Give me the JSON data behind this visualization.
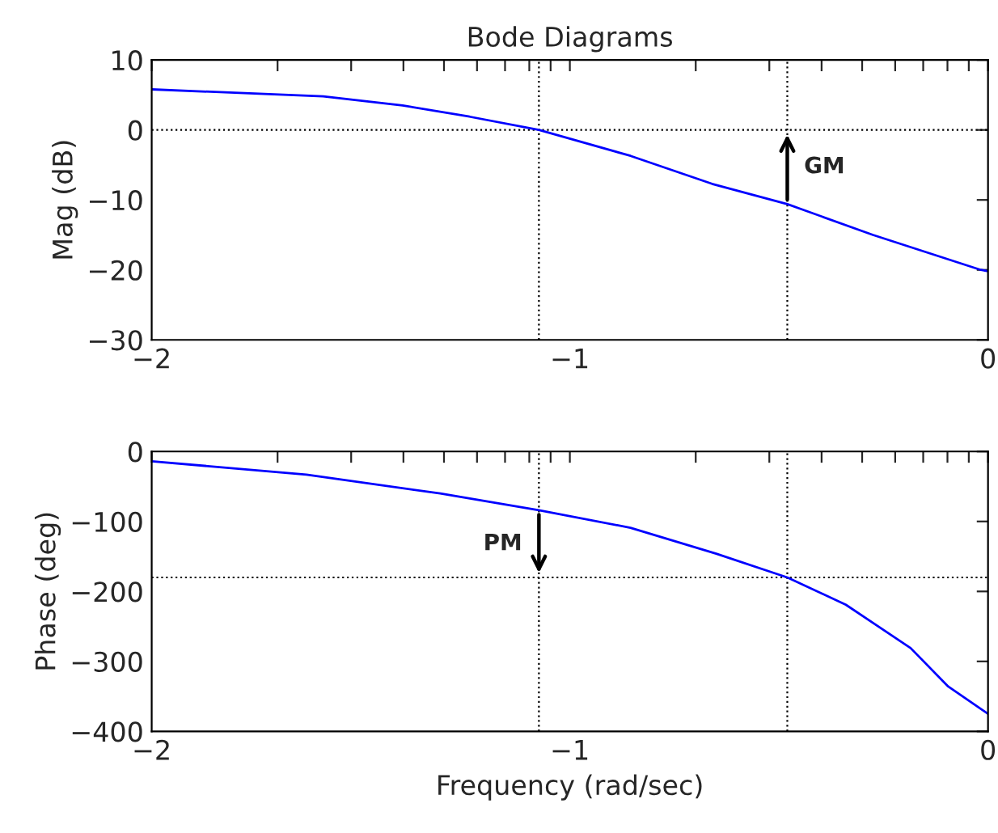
{
  "chart_data": [
    {
      "type": "line",
      "title": "Bode Diagrams",
      "ylabel": "Mag (dB)",
      "x": [
        -2,
        -1.59,
        -1.4,
        -1.24,
        -1.074,
        -0.855,
        -0.66,
        -0.48,
        -0.275,
        -0.017,
        0
      ],
      "series": [
        {
          "color": "#0000ff",
          "values": [
            5.8,
            4.8,
            3.5,
            1.9,
            0,
            -3.7,
            -7.7,
            -10.6,
            -15,
            -20,
            -20.2
          ]
        }
      ],
      "xlim": [
        -2,
        0
      ],
      "ylim": [
        -30,
        10
      ],
      "xticks": [
        -2,
        {
          "value": -1.699,
          "label": null
        },
        {
          "value": -1.523,
          "label": null
        },
        {
          "value": -1.398,
          "label": null
        },
        {
          "value": -1.301,
          "label": null
        },
        {
          "value": -1.222,
          "label": null
        },
        {
          "value": -1.155,
          "label": null
        },
        {
          "value": -1.097,
          "label": null
        },
        {
          "value": -1.046,
          "label": null
        },
        -1,
        {
          "value": -0.699,
          "label": null
        },
        {
          "value": -0.523,
          "label": null
        },
        {
          "value": -0.398,
          "label": null
        },
        {
          "value": -0.301,
          "label": null
        },
        {
          "value": -0.222,
          "label": null
        },
        {
          "value": -0.155,
          "label": null
        },
        {
          "value": -0.097,
          "label": null
        },
        {
          "value": -0.046,
          "label": null
        },
        0
      ],
      "yticks": [
        -30,
        -20,
        -10,
        0,
        10
      ],
      "ref_lines": [
        {
          "axis": "y",
          "value": 0,
          "line_style": "dotted"
        },
        {
          "axis": "x",
          "value": -1.074,
          "line_style": "dotted"
        },
        {
          "axis": "x",
          "value": -0.48,
          "line_style": "dotted"
        }
      ],
      "annotations": [
        {
          "text": "GM",
          "x": -0.48,
          "y": -10.6
        }
      ],
      "line_style": "solid",
      "marker": "none",
      "grid": false,
      "legend": false
    },
    {
      "type": "line",
      "xlabel": "Frequency (rad/sec)",
      "ylabel": "Phase (deg)",
      "x": [
        -2,
        -1.63,
        -1.31,
        -1.074,
        -0.855,
        -0.65,
        -0.48,
        -0.34,
        -0.185,
        -0.095,
        -0.017,
        0
      ],
      "series": [
        {
          "color": "#0000ff",
          "values": [
            -14,
            -33,
            -60,
            -84,
            -109,
            -146,
            -180,
            -219,
            -281,
            -336,
            -368,
            -375
          ]
        }
      ],
      "xlim": [
        -2,
        0
      ],
      "ylim": [
        -400,
        0
      ],
      "xticks": [
        -2,
        {
          "value": -1.699,
          "label": null
        },
        {
          "value": -1.523,
          "label": null
        },
        {
          "value": -1.398,
          "label": null
        },
        {
          "value": -1.301,
          "label": null
        },
        {
          "value": -1.222,
          "label": null
        },
        {
          "value": -1.155,
          "label": null
        },
        {
          "value": -1.097,
          "label": null
        },
        {
          "value": -1.046,
          "label": null
        },
        -1,
        {
          "value": -0.699,
          "label": null
        },
        {
          "value": -0.523,
          "label": null
        },
        {
          "value": -0.398,
          "label": null
        },
        {
          "value": -0.301,
          "label": null
        },
        {
          "value": -0.222,
          "label": null
        },
        {
          "value": -0.155,
          "label": null
        },
        {
          "value": -0.097,
          "label": null
        },
        {
          "value": -0.046,
          "label": null
        },
        0
      ],
      "yticks": [
        -400,
        -300,
        -200,
        -100,
        0
      ],
      "ref_lines": [
        {
          "axis": "y",
          "value": -180,
          "line_style": "dotted"
        },
        {
          "axis": "x",
          "value": -1.074,
          "line_style": "dotted"
        },
        {
          "axis": "x",
          "value": -0.48,
          "line_style": "dotted"
        }
      ],
      "annotations": [
        {
          "text": "PM",
          "x": -1.074,
          "y": -84
        }
      ],
      "line_style": "solid",
      "marker": "none",
      "grid": false,
      "legend": false
    }
  ]
}
